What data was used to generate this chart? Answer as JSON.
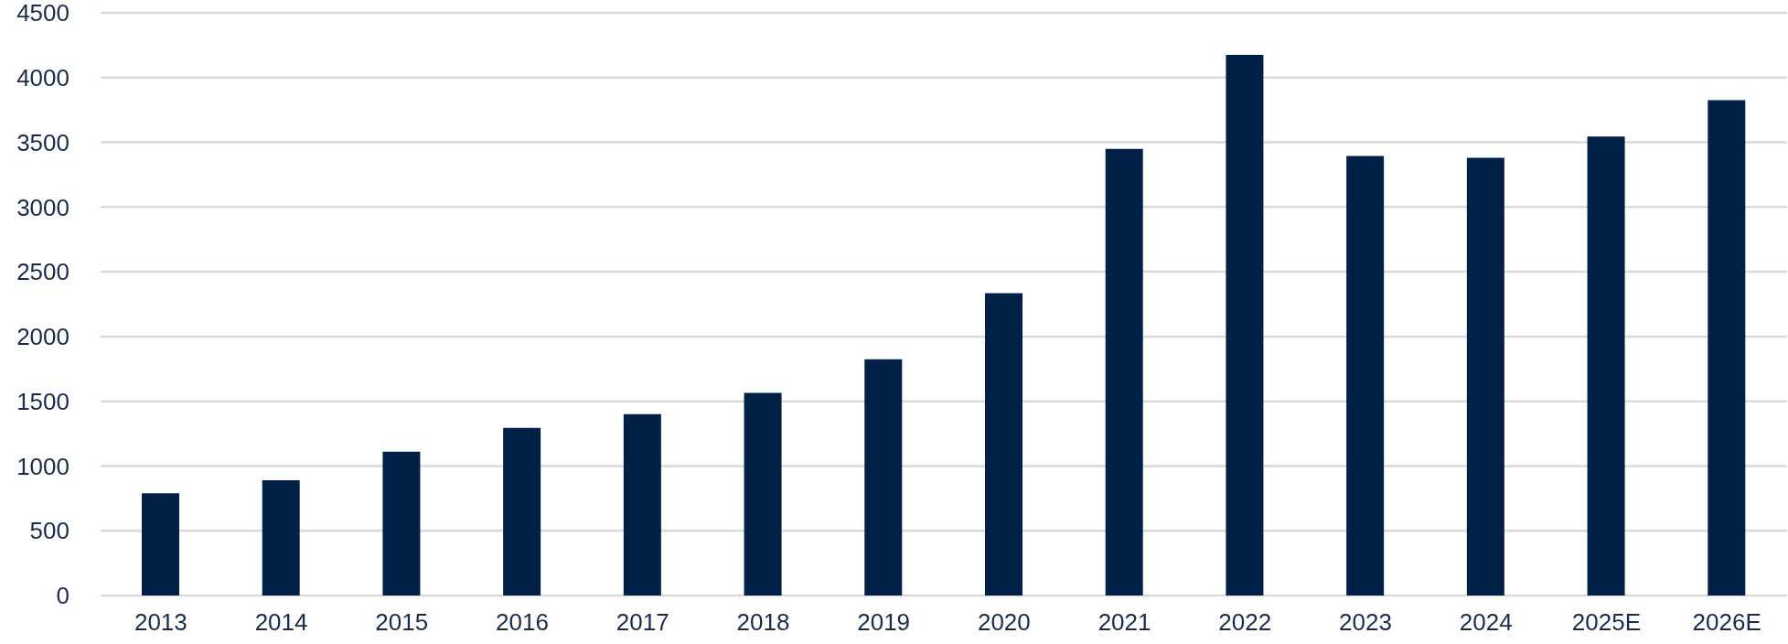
{
  "chart_data": {
    "type": "bar",
    "categories": [
      "2013",
      "2014",
      "2015",
      "2016",
      "2017",
      "2018",
      "2019",
      "2020",
      "2021",
      "2022",
      "2023",
      "2024",
      "2025E",
      "2026E"
    ],
    "values": [
      790,
      890,
      1110,
      1295,
      1400,
      1565,
      1825,
      2335,
      3450,
      4175,
      3395,
      3380,
      3545,
      3825
    ],
    "color": "#002145",
    "ylim": [
      0,
      4500
    ],
    "yticks": [
      0,
      500,
      1000,
      1500,
      2000,
      2500,
      3000,
      3500,
      4000,
      4500
    ],
    "grid": "y"
  }
}
